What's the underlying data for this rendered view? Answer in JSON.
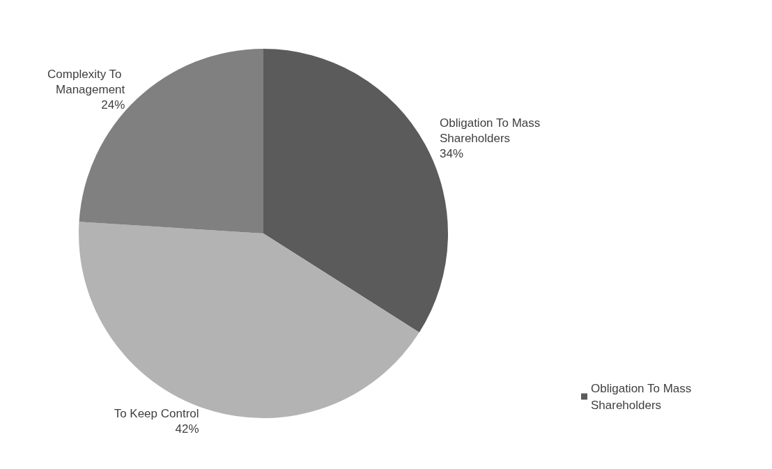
{
  "chart_data": {
    "type": "pie",
    "categories": [
      "Obligation To Mass Shareholders",
      "To Keep Control",
      "Complexity To Management"
    ],
    "values": [
      34,
      42,
      24
    ],
    "colors": [
      "#5b5b5b",
      "#b3b3b3",
      "#808080"
    ],
    "value_labels": [
      "34%",
      "42%",
      "24%"
    ],
    "legend": "bottom right"
  }
}
